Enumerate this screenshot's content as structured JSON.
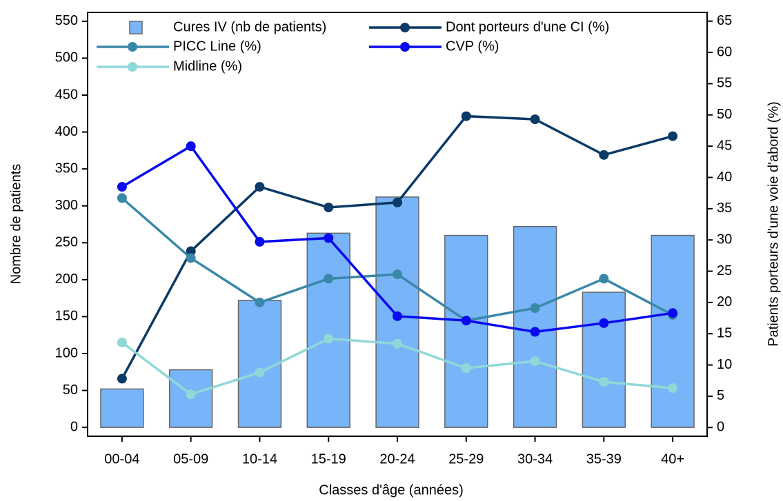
{
  "chart_data": {
    "type": "bar",
    "x_label": "Classes d'âge (années)",
    "y_label": "Nombre de patients",
    "y2_label": "Patients porteurs d'une voie d'abord (%)",
    "categories": [
      "00-04",
      "05-09",
      "10-14",
      "15-19",
      "20-24",
      "25-29",
      "30-34",
      "35-39",
      "40+"
    ],
    "series": [
      {
        "name": "Cures IV (nb de patients)",
        "color": "#78b4f8",
        "values": [
          52,
          78,
          172,
          263,
          312,
          260,
          272,
          183,
          260
        ]
      },
      {
        "name": "Dont porteurs d'une CI (%)",
        "color": "#0a3a66",
        "axis": "y2",
        "values": [
          7.8,
          28.2,
          38.5,
          35.2,
          36.0,
          49.8,
          49.3,
          43.6,
          46.6
        ]
      },
      {
        "name": "PICC Line (%)",
        "color": "#3a88a8",
        "axis": "y2",
        "values": [
          36.7,
          27.1,
          20.0,
          23.8,
          24.5,
          17.1,
          19.1,
          23.8,
          18.0
        ]
      },
      {
        "name": "CVP (%)",
        "color": "#0a0aee",
        "axis": "y2",
        "values": [
          38.5,
          45.0,
          29.7,
          30.3,
          17.8,
          17.1,
          15.3,
          16.7,
          18.3
        ]
      },
      {
        "name": "Midline (%)",
        "color": "#90d8d8",
        "axis": "y2",
        "values": [
          13.6,
          5.3,
          8.8,
          14.2,
          13.4,
          9.5,
          10.6,
          7.3,
          6.3
        ]
      }
    ],
    "ylim": [
      -12,
      562
    ],
    "yticks": [
      0,
      50,
      100,
      150,
      200,
      250,
      300,
      350,
      400,
      450,
      500,
      550
    ],
    "y2lim": [
      -1.4,
      66.4
    ],
    "y2ticks": [
      0,
      5,
      10,
      15,
      20,
      25,
      30,
      35,
      40,
      45,
      50,
      55,
      60,
      65
    ]
  }
}
